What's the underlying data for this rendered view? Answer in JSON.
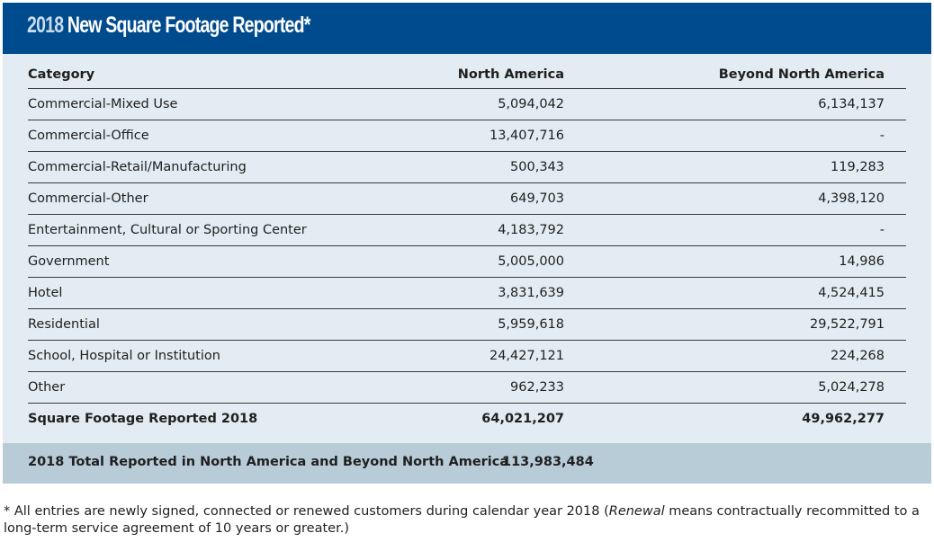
{
  "title": {
    "year": "2018",
    "text": "New Square Footage Reported*"
  },
  "table": {
    "headers": [
      "Category",
      "North America",
      "Beyond North America"
    ],
    "rows": [
      [
        "Commercial-Mixed Use",
        "5,094,042",
        "6,134,137"
      ],
      [
        "Commercial-Office",
        "13,407,716",
        "-"
      ],
      [
        "Commercial-Retail/Manufacturing",
        "500,343",
        "119,283"
      ],
      [
        "Commercial-Other",
        "649,703",
        "4,398,120"
      ],
      [
        "Entertainment, Cultural or Sporting Center",
        "4,183,792",
        "-"
      ],
      [
        "Government",
        "5,005,000",
        "14,986"
      ],
      [
        "Hotel",
        "3,831,639",
        "4,524,415"
      ],
      [
        "Residential",
        "5,959,618",
        "29,522,791"
      ],
      [
        "School, Hospital or Institution",
        "24,427,121",
        "224,268"
      ],
      [
        "Other",
        "962,233",
        "5,024,278"
      ]
    ],
    "total": [
      "Square Footage Reported 2018",
      "64,021,207",
      "49,962,277"
    ]
  },
  "grand_total": {
    "label": "2018 Total Reported in North America and Beyond North America",
    "value": "113,983,484"
  },
  "note": {
    "prefix": "* All entries are newly signed, connected or renewed customers during calendar year 2018 (",
    "emphasis": "Renewal",
    "suffix": " means contractually recommitted to a long-term service agreement of 10 years or greater.)"
  },
  "colors": {
    "title_bar": "#004b8d",
    "panel": "#e2ecf2",
    "footer_band": "#b8ccd8"
  }
}
